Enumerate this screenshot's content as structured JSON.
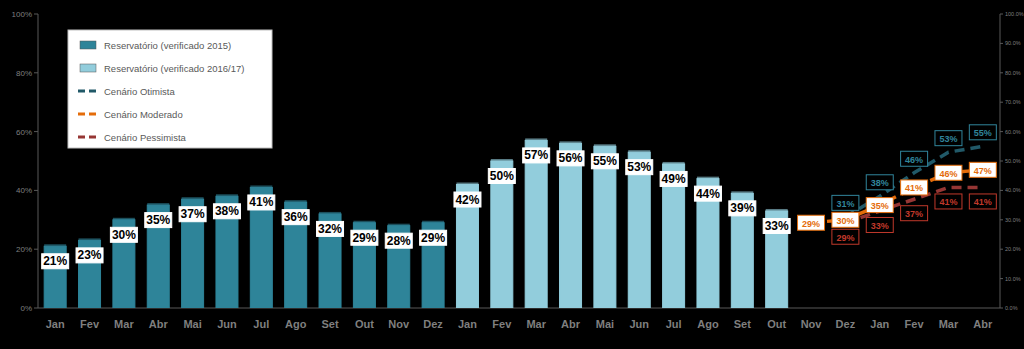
{
  "chart_data": {
    "type": "bar",
    "categories": [
      "Jan",
      "Fev",
      "Mar",
      "Abr",
      "Mai",
      "Jun",
      "Jul",
      "Ago",
      "Set",
      "Out",
      "Nov",
      "Dez",
      "Jan",
      "Fev",
      "Mar",
      "Abr",
      "Mai",
      "Jun",
      "Jul",
      "Ago",
      "Set",
      "Out",
      "Nov",
      "Dez",
      "Jan",
      "Fev",
      "Mar",
      "Abr"
    ],
    "series": [
      {
        "name": "Reservatório (verificado 2015)",
        "type": "bar",
        "color": "#2e8499",
        "values": [
          21,
          23,
          30,
          35,
          37,
          38,
          41,
          36,
          32,
          29,
          28,
          29,
          null,
          null,
          null,
          null,
          null,
          null,
          null,
          null,
          null,
          null,
          null,
          null,
          null,
          null,
          null,
          null
        ],
        "value_labels": [
          "21%",
          "23%",
          "30%",
          "35%",
          "37%",
          "38%",
          "41%",
          "36%",
          "32%",
          "29%",
          "28%",
          "29%",
          null,
          null,
          null,
          null,
          null,
          null,
          null,
          null,
          null,
          null,
          null,
          null,
          null,
          null,
          null,
          null
        ]
      },
      {
        "name": "Reservatório (verificado 2016/17)",
        "type": "bar",
        "color": "#92cddc",
        "values": [
          null,
          null,
          null,
          null,
          null,
          null,
          null,
          null,
          null,
          null,
          null,
          null,
          42,
          50,
          57,
          56,
          55,
          53,
          49,
          44,
          39,
          33,
          null,
          null,
          null,
          null,
          null,
          null
        ],
        "value_labels": [
          null,
          null,
          null,
          null,
          null,
          null,
          null,
          null,
          null,
          null,
          null,
          null,
          "42%",
          "50%",
          "57%",
          "56%",
          "55%",
          "53%",
          "49%",
          "44%",
          "39%",
          "33%",
          null,
          null,
          null,
          null,
          null,
          null
        ]
      },
      {
        "name": "Cenário Otimista",
        "type": "line",
        "line_style": "dashed",
        "color": "#215968",
        "values": [
          null,
          null,
          null,
          null,
          null,
          null,
          null,
          null,
          null,
          null,
          null,
          null,
          null,
          null,
          null,
          null,
          null,
          null,
          null,
          null,
          null,
          null,
          null,
          31,
          38,
          46,
          53,
          55
        ],
        "value_labels": [
          null,
          null,
          null,
          null,
          null,
          null,
          null,
          null,
          null,
          null,
          null,
          null,
          null,
          null,
          null,
          null,
          null,
          null,
          null,
          null,
          null,
          null,
          null,
          "31%",
          "38%",
          "46%",
          "53%",
          "55%"
        ]
      },
      {
        "name": "Cenário Moderado",
        "type": "line",
        "line_style": "dashed",
        "color": "#e46c0a",
        "values": [
          null,
          null,
          null,
          null,
          null,
          null,
          null,
          null,
          null,
          null,
          null,
          null,
          null,
          null,
          null,
          null,
          null,
          null,
          null,
          null,
          null,
          null,
          29,
          30,
          35,
          41,
          46,
          47
        ],
        "value_labels": [
          null,
          null,
          null,
          null,
          null,
          null,
          null,
          null,
          null,
          null,
          null,
          null,
          null,
          null,
          null,
          null,
          null,
          null,
          null,
          null,
          null,
          null,
          "29%",
          "30%",
          "35%",
          "41%",
          "46%",
          "47%"
        ]
      },
      {
        "name": "Cenário Pessimista",
        "type": "line",
        "line_style": "dashed",
        "color": "#963634",
        "values": [
          null,
          null,
          null,
          null,
          null,
          null,
          null,
          null,
          null,
          null,
          null,
          null,
          null,
          null,
          null,
          null,
          null,
          null,
          null,
          null,
          null,
          null,
          null,
          29,
          33,
          37,
          41,
          41
        ],
        "value_labels": [
          null,
          null,
          null,
          null,
          null,
          null,
          null,
          null,
          null,
          null,
          null,
          null,
          null,
          null,
          null,
          null,
          null,
          null,
          null,
          null,
          null,
          null,
          null,
          "29%",
          "33%",
          "37%",
          "41%",
          "41%"
        ]
      }
    ],
    "ylim": [
      0,
      100
    ],
    "yticks": [
      {
        "value": 0,
        "label": "0%"
      },
      {
        "value": 20,
        "label": "20%"
      },
      {
        "value": 40,
        "label": "40%"
      },
      {
        "value": 60,
        "label": "60%"
      },
      {
        "value": 80,
        "label": "80%"
      },
      {
        "value": 100,
        "label": "100%"
      }
    ],
    "y2lim": [
      0,
      100
    ],
    "y2ticks": [
      {
        "value": 0,
        "label": "0.0%"
      },
      {
        "value": 10,
        "label": "10.0%"
      },
      {
        "value": 20,
        "label": "20.0%"
      },
      {
        "value": 30,
        "label": "30.0%"
      },
      {
        "value": 40,
        "label": "40.0%"
      },
      {
        "value": 50,
        "label": "50.0%"
      },
      {
        "value": 60,
        "label": "60.0%"
      },
      {
        "value": 70,
        "label": "70.0%"
      },
      {
        "value": 80,
        "label": "80.0%"
      },
      {
        "value": 90,
        "label": "90.0%"
      },
      {
        "value": 100,
        "label": "100.0%"
      }
    ],
    "grid": false,
    "legend": "upper-left",
    "data_labels": true
  }
}
